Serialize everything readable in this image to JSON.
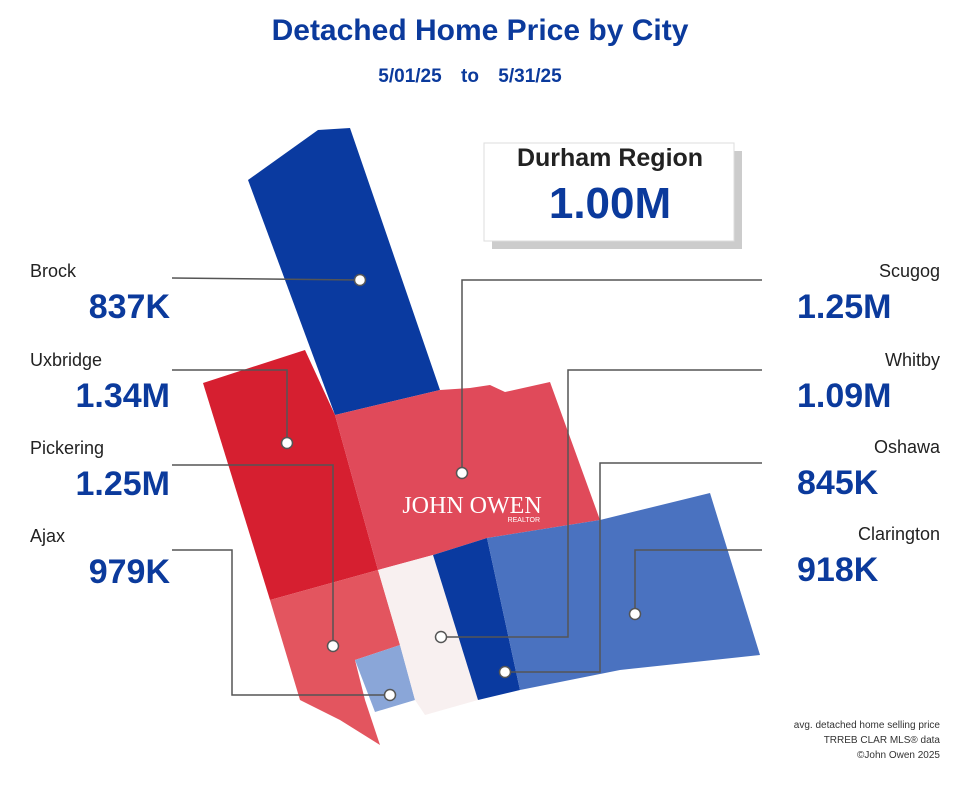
{
  "header": {
    "title": "Detached Home Price by City",
    "date_from": "5/01/25",
    "connector": "to",
    "date_to": "5/31/25"
  },
  "region": {
    "name": "Durham Region",
    "price": "1.00M"
  },
  "cities": [
    {
      "name": "Brock",
      "price": "837K"
    },
    {
      "name": "Uxbridge",
      "price": "1.34M"
    },
    {
      "name": "Pickering",
      "price": "1.25M"
    },
    {
      "name": "Ajax",
      "price": "979K"
    },
    {
      "name": "Scugog",
      "price": "1.25M"
    },
    {
      "name": "Whitby",
      "price": "1.09M"
    },
    {
      "name": "Oshawa",
      "price": "845K"
    },
    {
      "name": "Clarington",
      "price": "918K"
    }
  ],
  "logo": {
    "name": "JOHN OWEN",
    "sub": "REALTOR"
  },
  "footer": [
    "avg. detached home selling price",
    "TRREB CLAR MLS® data",
    "©John Owen 2025"
  ]
}
